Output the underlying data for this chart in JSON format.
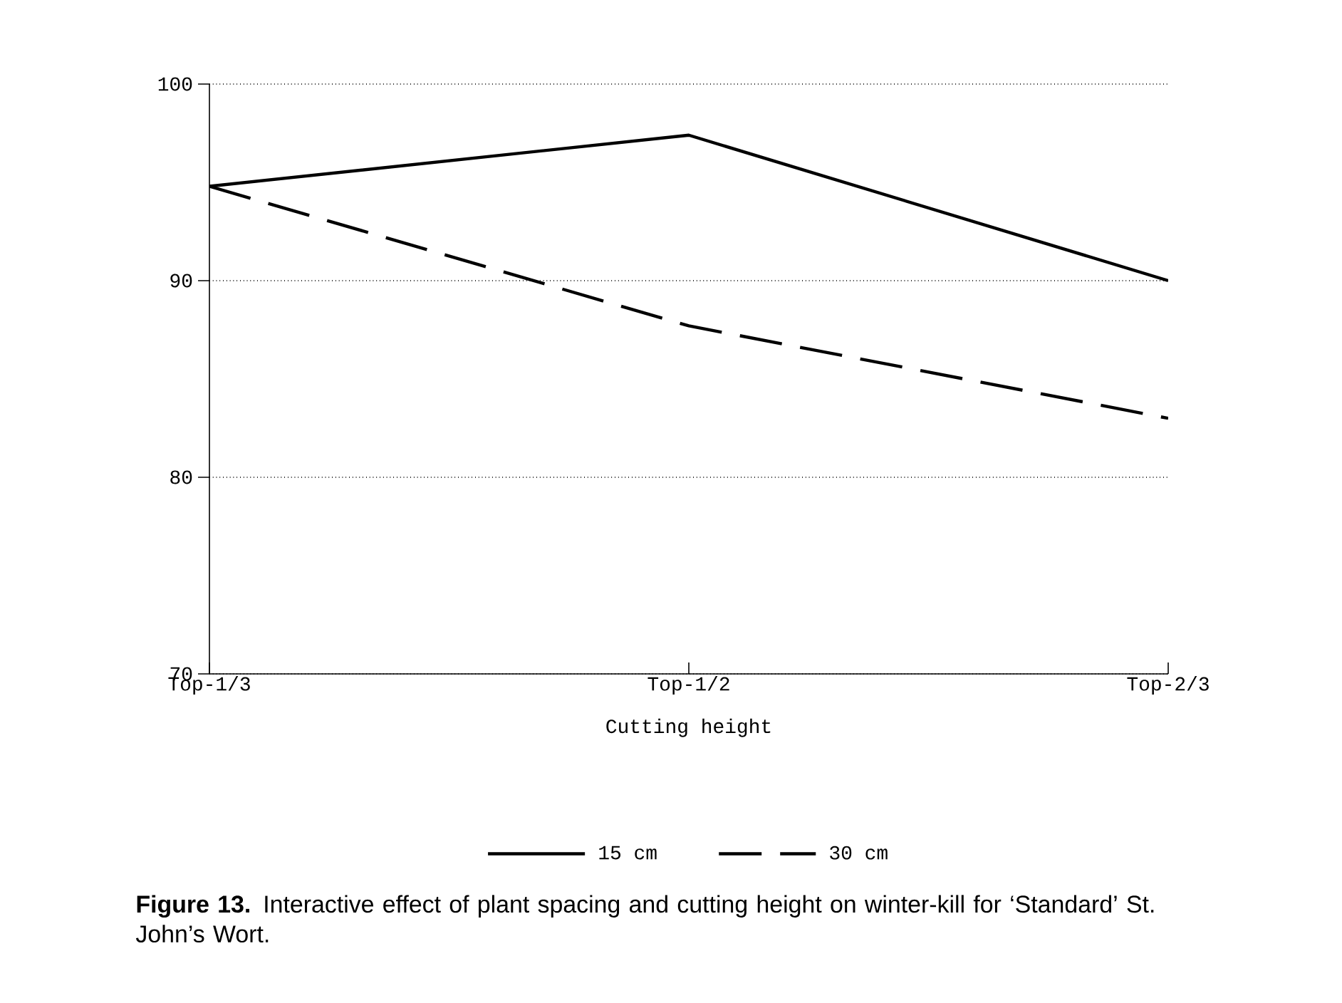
{
  "chart_data": {
    "type": "line",
    "xlabel": "Cutting height",
    "categories": [
      "Top-1/3",
      "Top-1/2",
      "Top-2/3"
    ],
    "series": [
      {
        "name": "15 cm",
        "color": "#000000",
        "line_style": "solid",
        "values": [
          94.8,
          97.4,
          90.0
        ]
      },
      {
        "name": "30 cm",
        "color": "#000000",
        "line_style": "dashed",
        "values": [
          94.8,
          87.7,
          83.0
        ]
      }
    ],
    "ylim": [
      70,
      100
    ],
    "yticks": [
      70,
      80,
      90,
      100
    ],
    "grid": "y",
    "legend": "bottom",
    "marker": "none",
    "annotations": [
      "**Figure 13.** Interactive effect of plant spacing and cutting height on winter-kill for ‘Standard’ St. John’s Wort."
    ]
  }
}
